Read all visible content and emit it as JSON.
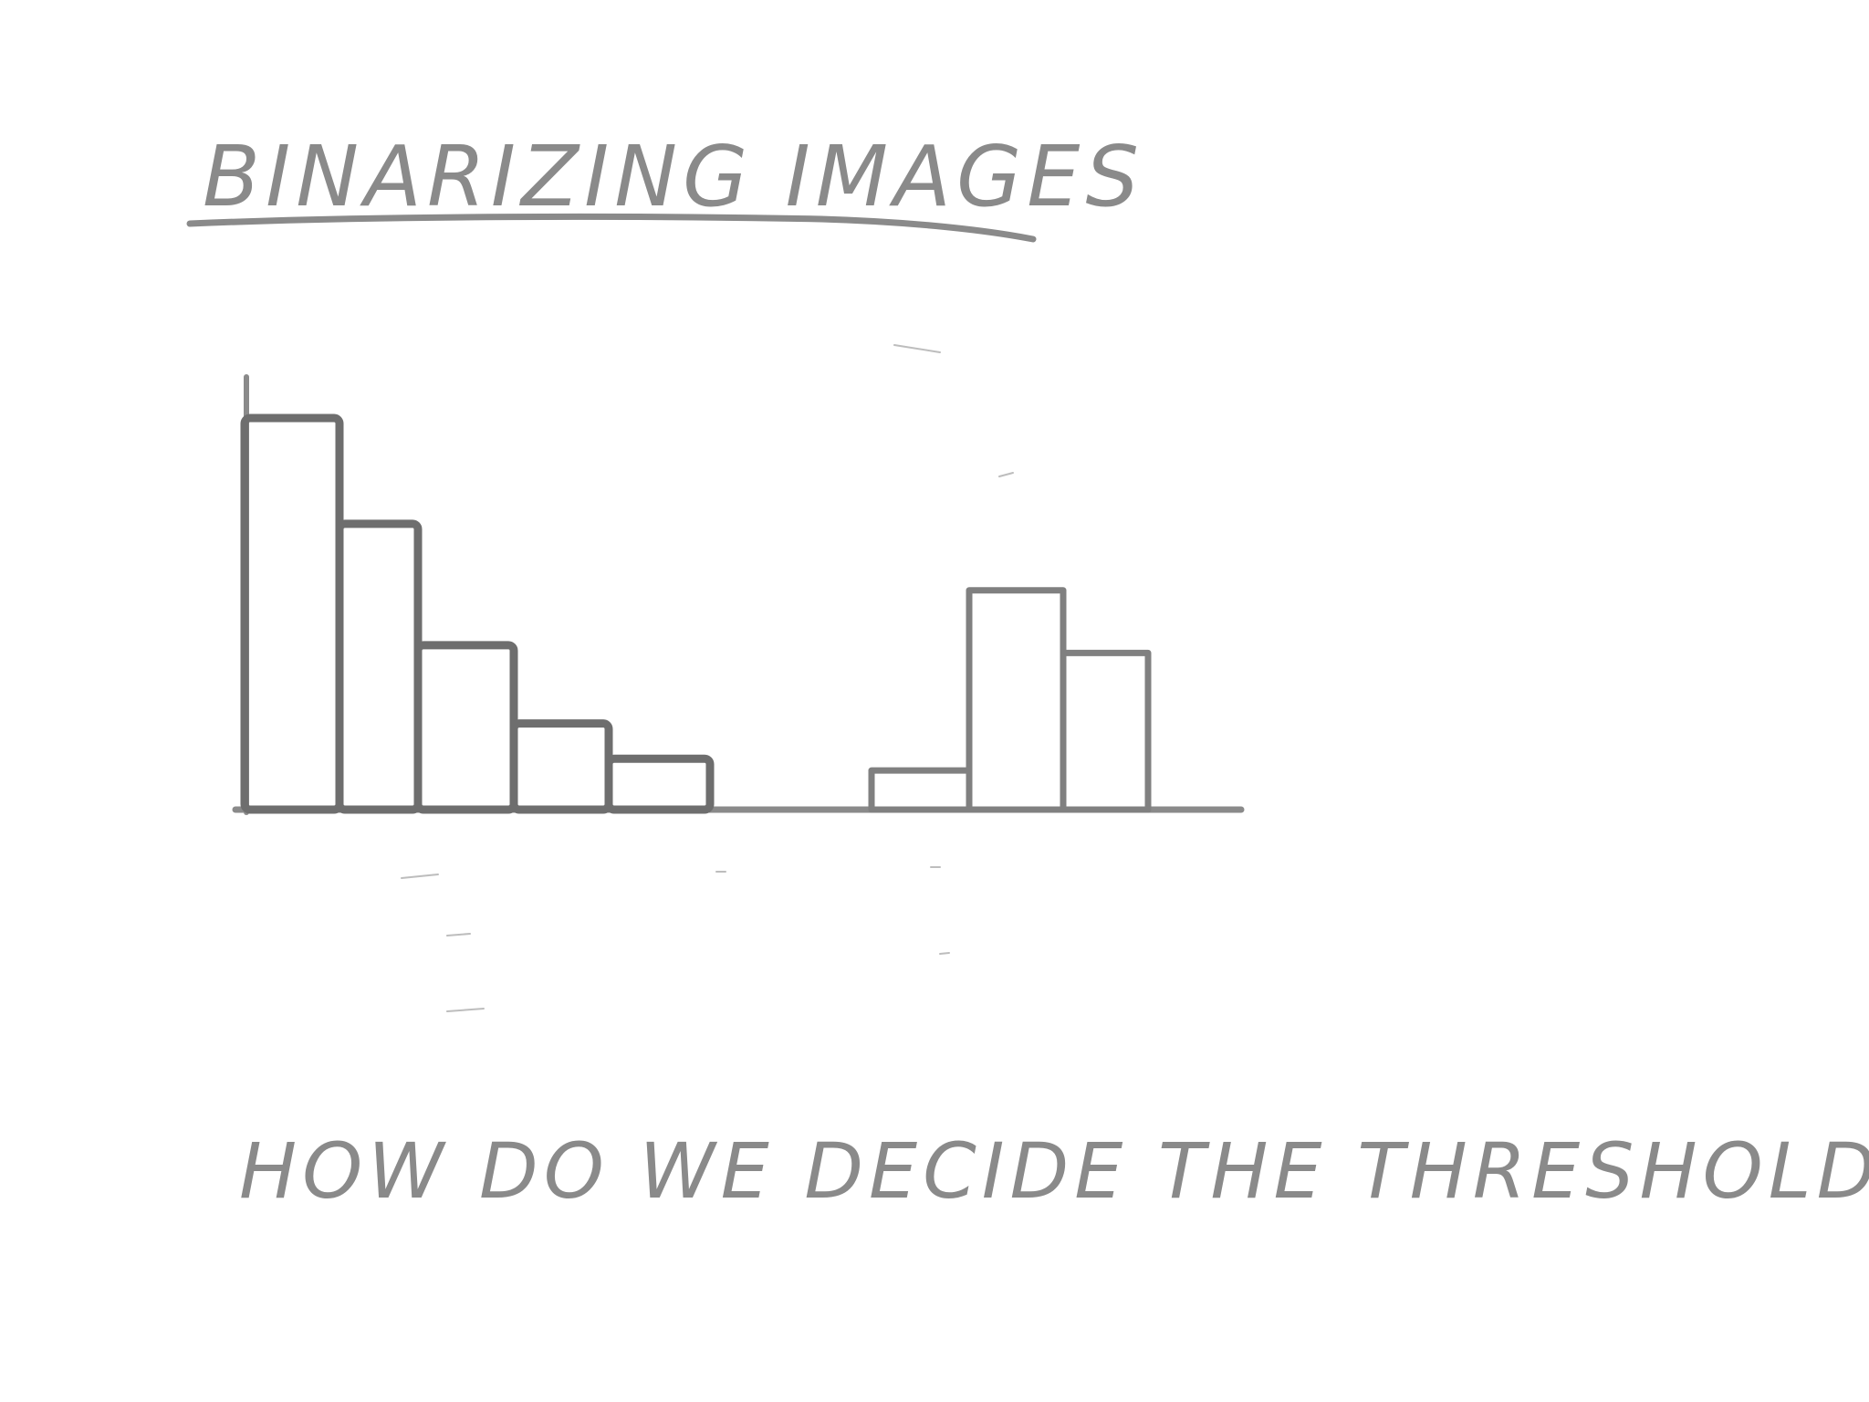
{
  "title": "BINARIZING IMAGES",
  "question": "HOW DO WE DECIDE THE THRESHOLD ?",
  "chart_data": {
    "type": "bar",
    "ylim": [
      0,
      1
    ],
    "bars": [
      {
        "value": 1.0,
        "group": "dark",
        "shaded": true
      },
      {
        "value": 0.73,
        "group": "dark",
        "shaded": true
      },
      {
        "value": 0.42,
        "group": "dark",
        "shaded": true
      },
      {
        "value": 0.22,
        "group": "dark",
        "shaded": true
      },
      {
        "value": 0.13,
        "group": "dark",
        "shaded": true
      },
      {
        "value": 0,
        "group": "gap",
        "shaded": false
      },
      {
        "value": 0,
        "group": "gap",
        "shaded": false
      },
      {
        "value": 0.1,
        "group": "light",
        "shaded": false
      },
      {
        "value": 0.56,
        "group": "light",
        "shaded": false
      },
      {
        "value": 0.4,
        "group": "light",
        "shaded": false
      }
    ]
  },
  "colors": {
    "ink": "#8a8a8a",
    "bar_outline": "#808080",
    "background": "#ffffff"
  }
}
